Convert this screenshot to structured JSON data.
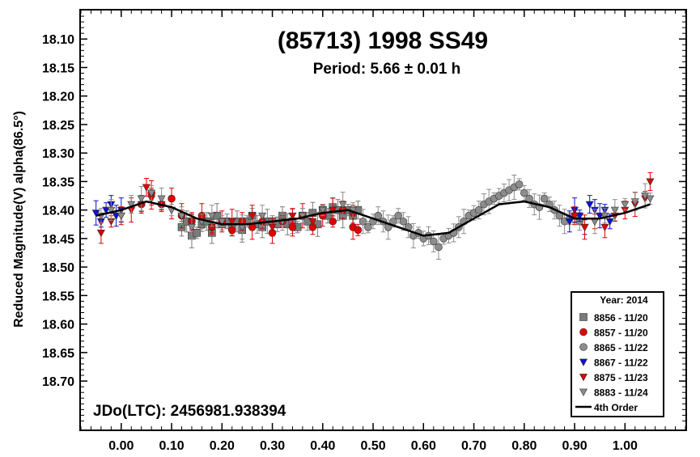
{
  "chart_data": {
    "type": "scatter",
    "title": "(85713) 1998 SS49",
    "subtitle": "Period: 5.66 ± 0.01 h",
    "ylabel": "Reduced Magnitude(V) alpha(86.5°)",
    "xlabel": "",
    "xlim": [
      -0.08,
      1.12
    ],
    "ylim": [
      18.05,
      18.785
    ],
    "y_inverted": true,
    "x_ticks": [
      "0.00",
      "0.10",
      "0.20",
      "0.30",
      "0.40",
      "0.50",
      "0.60",
      "0.70",
      "0.80",
      "0.90",
      "1.00"
    ],
    "y_ticks": [
      "18.10",
      "18.15",
      "18.20",
      "18.25",
      "18.30",
      "18.35",
      "18.40",
      "18.45",
      "18.50",
      "18.55",
      "18.60",
      "18.65",
      "18.70"
    ],
    "annotation": "JDo(LTC): 2456981.938394",
    "legend_title": "Year: 2014",
    "legend_position": "bottom-right",
    "grid": false,
    "series": [
      {
        "name": "8856 - 11/20",
        "marker": "square",
        "color": "#7a7a7a",
        "x_range": [
          0.12,
          0.47
        ],
        "points": [
          [
            0.12,
            18.43
          ],
          [
            0.13,
            18.42
          ],
          [
            0.14,
            18.445
          ],
          [
            0.15,
            18.44
          ],
          [
            0.16,
            18.425
          ],
          [
            0.17,
            18.42
          ],
          [
            0.18,
            18.44
          ],
          [
            0.19,
            18.41
          ],
          [
            0.2,
            18.425
          ],
          [
            0.21,
            18.42
          ],
          [
            0.22,
            18.43
          ],
          [
            0.23,
            18.42
          ],
          [
            0.24,
            18.435
          ],
          [
            0.25,
            18.42
          ],
          [
            0.26,
            18.41
          ],
          [
            0.27,
            18.425
          ],
          [
            0.28,
            18.43
          ],
          [
            0.29,
            18.42
          ],
          [
            0.3,
            18.42
          ],
          [
            0.31,
            18.425
          ],
          [
            0.32,
            18.41
          ],
          [
            0.33,
            18.425
          ],
          [
            0.34,
            18.42
          ],
          [
            0.35,
            18.43
          ],
          [
            0.36,
            18.41
          ],
          [
            0.37,
            18.42
          ],
          [
            0.38,
            18.405
          ],
          [
            0.39,
            18.425
          ],
          [
            0.4,
            18.4
          ],
          [
            0.41,
            18.41
          ],
          [
            0.42,
            18.395
          ],
          [
            0.43,
            18.4
          ],
          [
            0.44,
            18.41
          ],
          [
            0.45,
            18.4
          ],
          [
            0.46,
            18.41
          ],
          [
            0.47,
            18.4
          ]
        ]
      },
      {
        "name": "8857 - 11/20",
        "marker": "circle",
        "color": "#e00000",
        "x_range": [
          0.04,
          0.47
        ],
        "points": [
          [
            0.04,
            18.39
          ],
          [
            0.06,
            18.37
          ],
          [
            0.08,
            18.39
          ],
          [
            0.1,
            18.38
          ],
          [
            0.12,
            18.41
          ],
          [
            0.14,
            18.42
          ],
          [
            0.16,
            18.41
          ],
          [
            0.18,
            18.43
          ],
          [
            0.2,
            18.42
          ],
          [
            0.22,
            18.435
          ],
          [
            0.24,
            18.42
          ],
          [
            0.26,
            18.43
          ],
          [
            0.28,
            18.42
          ],
          [
            0.3,
            18.44
          ],
          [
            0.32,
            18.42
          ],
          [
            0.34,
            18.43
          ],
          [
            0.36,
            18.41
          ],
          [
            0.38,
            18.43
          ],
          [
            0.4,
            18.41
          ],
          [
            0.42,
            18.42
          ],
          [
            0.44,
            18.4
          ],
          [
            0.46,
            18.43
          ],
          [
            0.47,
            18.435
          ]
        ]
      },
      {
        "name": "8865 - 11/22",
        "marker": "circle",
        "color": "#8c8c8c",
        "x_range": [
          0.48,
          0.91
        ],
        "points": [
          [
            0.48,
            18.42
          ],
          [
            0.49,
            18.43
          ],
          [
            0.5,
            18.42
          ],
          [
            0.51,
            18.41
          ],
          [
            0.52,
            18.42
          ],
          [
            0.53,
            18.43
          ],
          [
            0.54,
            18.42
          ],
          [
            0.55,
            18.41
          ],
          [
            0.56,
            18.42
          ],
          [
            0.57,
            18.43
          ],
          [
            0.58,
            18.445
          ],
          [
            0.59,
            18.44
          ],
          [
            0.6,
            18.45
          ],
          [
            0.61,
            18.445
          ],
          [
            0.62,
            18.455
          ],
          [
            0.63,
            18.465
          ],
          [
            0.64,
            18.45
          ],
          [
            0.65,
            18.445
          ],
          [
            0.66,
            18.44
          ],
          [
            0.67,
            18.43
          ],
          [
            0.68,
            18.42
          ],
          [
            0.69,
            18.41
          ],
          [
            0.7,
            18.405
          ],
          [
            0.71,
            18.4
          ],
          [
            0.72,
            18.39
          ],
          [
            0.73,
            18.385
          ],
          [
            0.74,
            18.38
          ],
          [
            0.75,
            18.375
          ],
          [
            0.76,
            18.37
          ],
          [
            0.77,
            18.365
          ],
          [
            0.78,
            18.36
          ],
          [
            0.79,
            18.355
          ],
          [
            0.8,
            18.37
          ],
          [
            0.81,
            18.38
          ],
          [
            0.82,
            18.39
          ],
          [
            0.83,
            18.395
          ],
          [
            0.84,
            18.38
          ],
          [
            0.85,
            18.39
          ],
          [
            0.86,
            18.4
          ],
          [
            0.87,
            18.41
          ],
          [
            0.88,
            18.42
          ],
          [
            0.89,
            18.415
          ],
          [
            0.9,
            18.41
          ],
          [
            0.91,
            18.42
          ]
        ]
      },
      {
        "name": "8867 - 11/22",
        "marker": "triangle-down",
        "color": "#1010d0",
        "x_range": [
          -0.05,
          0.97
        ],
        "points": [
          [
            -0.05,
            18.405
          ],
          [
            -0.04,
            18.42
          ],
          [
            -0.03,
            18.4
          ],
          [
            -0.02,
            18.39
          ],
          [
            -0.01,
            18.41
          ],
          [
            0.0,
            18.4
          ],
          [
            0.89,
            18.42
          ],
          [
            0.9,
            18.4
          ],
          [
            0.91,
            18.41
          ],
          [
            0.92,
            18.43
          ],
          [
            0.93,
            18.39
          ],
          [
            0.94,
            18.4
          ],
          [
            0.95,
            18.41
          ],
          [
            0.96,
            18.4
          ],
          [
            0.97,
            18.42
          ]
        ]
      },
      {
        "name": "8875 - 11/23",
        "marker": "triangle-down",
        "color": "#e00000",
        "x_range": [
          -0.04,
          1.05
        ],
        "points": [
          [
            -0.04,
            18.44
          ],
          [
            -0.02,
            18.42
          ],
          [
            0.0,
            18.41
          ],
          [
            0.02,
            18.4
          ],
          [
            0.04,
            18.39
          ],
          [
            0.05,
            18.36
          ],
          [
            0.06,
            18.38
          ],
          [
            0.08,
            18.39
          ],
          [
            0.1,
            18.4
          ],
          [
            0.12,
            18.41
          ],
          [
            0.14,
            18.42
          ],
          [
            0.18,
            18.43
          ],
          [
            0.22,
            18.42
          ],
          [
            0.26,
            18.41
          ],
          [
            0.3,
            18.43
          ],
          [
            0.34,
            18.41
          ],
          [
            0.38,
            18.42
          ],
          [
            0.42,
            18.4
          ],
          [
            0.46,
            18.41
          ],
          [
            0.9,
            18.41
          ],
          [
            0.92,
            18.43
          ],
          [
            0.94,
            18.42
          ],
          [
            0.96,
            18.43
          ],
          [
            0.98,
            18.41
          ],
          [
            1.0,
            18.4
          ],
          [
            1.02,
            18.39
          ],
          [
            1.04,
            18.38
          ],
          [
            1.05,
            18.35
          ]
        ]
      },
      {
        "name": "8883 - 11/24",
        "marker": "triangle-down",
        "color": "#8c8c8c",
        "x_range": [
          -0.04,
          1.05
        ],
        "points": [
          [
            -0.04,
            18.41
          ],
          [
            -0.02,
            18.4
          ],
          [
            0.0,
            18.41
          ],
          [
            0.02,
            18.39
          ],
          [
            0.04,
            18.38
          ],
          [
            0.06,
            18.37
          ],
          [
            0.08,
            18.38
          ],
          [
            0.1,
            18.4
          ],
          [
            0.12,
            18.41
          ],
          [
            0.14,
            18.43
          ],
          [
            0.16,
            18.42
          ],
          [
            0.18,
            18.41
          ],
          [
            0.2,
            18.42
          ],
          [
            0.24,
            18.43
          ],
          [
            0.28,
            18.41
          ],
          [
            0.32,
            18.42
          ],
          [
            0.36,
            18.41
          ],
          [
            0.4,
            18.4
          ],
          [
            0.44,
            18.39
          ],
          [
            0.46,
            18.4
          ],
          [
            0.94,
            18.42
          ],
          [
            0.96,
            18.41
          ],
          [
            0.98,
            18.4
          ],
          [
            1.0,
            18.39
          ],
          [
            1.02,
            18.385
          ],
          [
            1.04,
            18.375
          ],
          [
            1.05,
            18.38
          ]
        ]
      }
    ],
    "fit": {
      "name": "4th Order",
      "x": [
        -0.05,
        0.0,
        0.05,
        0.1,
        0.15,
        0.2,
        0.25,
        0.3,
        0.35,
        0.4,
        0.45,
        0.5,
        0.55,
        0.6,
        0.65,
        0.7,
        0.75,
        0.8,
        0.85,
        0.9,
        0.95,
        1.0,
        1.05
      ],
      "y": [
        18.41,
        18.4,
        18.385,
        18.395,
        18.415,
        18.425,
        18.425,
        18.42,
        18.415,
        18.405,
        18.4,
        18.415,
        18.43,
        18.445,
        18.44,
        18.415,
        18.39,
        18.385,
        18.395,
        18.415,
        18.415,
        18.405,
        18.39
      ]
    }
  }
}
